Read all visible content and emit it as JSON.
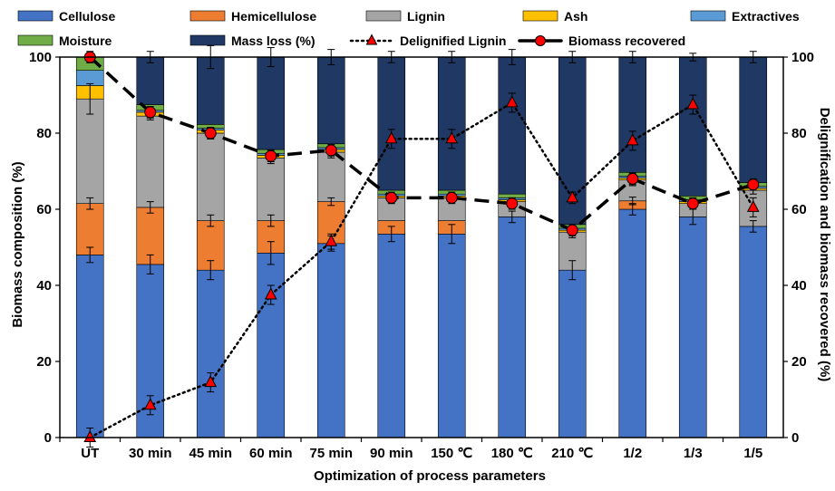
{
  "chart_data": {
    "type": "bar",
    "subtype": "stacked-bar-with-lines",
    "categories": [
      "UT",
      "30 min",
      "45 min",
      "60 min",
      "75 min",
      "90 min",
      "150 ℃",
      "180 ℃",
      "210 ℃",
      "1/2",
      "1/3",
      "1/5"
    ],
    "xlabel": "Optimization of process parameters",
    "ylabel": "Biomass composition (%)",
    "y2label": "Delignification and biomass recovered (%)",
    "ylim": [
      0,
      100
    ],
    "y2lim": [
      0,
      100
    ],
    "yticks": [
      0,
      20,
      40,
      60,
      80,
      100
    ],
    "y2ticks": [
      0,
      20,
      40,
      60,
      80,
      100
    ],
    "grid": false,
    "legend_position": "top",
    "stacked_series": [
      {
        "name": "Cellulose",
        "color": "#4472C4",
        "values": [
          48,
          45.5,
          44,
          48.5,
          51,
          53.5,
          53.5,
          58,
          44,
          60,
          58,
          55.5
        ],
        "errors": [
          2,
          2.5,
          2.5,
          3,
          2,
          2,
          2.5,
          1.5,
          2.5,
          1.5,
          2,
          1.5
        ]
      },
      {
        "name": "Hemicellulose",
        "color": "#ED7D31",
        "values": [
          13.5,
          15,
          13,
          8.5,
          11,
          3.5,
          3.5,
          0,
          0,
          2.2,
          0,
          0
        ],
        "errors": [
          1.5,
          1.5,
          1.5,
          1.5,
          1,
          0,
          0,
          0,
          0,
          1,
          0,
          0
        ]
      },
      {
        "name": "Lignin",
        "color": "#A5A5A5",
        "values": [
          27.5,
          24,
          23,
          16.5,
          13,
          6,
          6,
          4,
          10,
          5.5,
          3.5,
          9.5
        ],
        "errors": [
          4,
          1,
          1.5,
          1.5,
          1.5,
          1,
          1,
          1,
          1.5,
          1.5,
          1.5,
          1
        ]
      },
      {
        "name": "Ash",
        "color": "#FFC000",
        "values": [
          3.5,
          1,
          0.8,
          0.7,
          0.7,
          0.5,
          0.5,
          0.5,
          0.5,
          0.5,
          0.5,
          0.5
        ],
        "errors": [
          0,
          0,
          0,
          0,
          0,
          0,
          0,
          0,
          0,
          0,
          0,
          0
        ]
      },
      {
        "name": "Extractives",
        "color": "#5B9BD5",
        "values": [
          4,
          0.5,
          0.5,
          0.5,
          0.5,
          0.5,
          0.5,
          0.5,
          0.5,
          0.5,
          0.5,
          0.5
        ],
        "errors": [
          0,
          0,
          0,
          0,
          0,
          0,
          0,
          0,
          0,
          0,
          0,
          0
        ]
      },
      {
        "name": "Moisture",
        "color": "#70AD47",
        "values": [
          3.5,
          1.5,
          1,
          1,
          1,
          1,
          1,
          1,
          1,
          1,
          1,
          1
        ],
        "errors": [
          0,
          0,
          0,
          0,
          0,
          0,
          0,
          0,
          0,
          0,
          0,
          0
        ]
      },
      {
        "name": "Mass loss (%)",
        "color": "#203864",
        "values": [
          0,
          12.5,
          17.7,
          24.3,
          22.8,
          35,
          35,
          36,
          44,
          30.3,
          36.5,
          33
        ],
        "errors": [
          0,
          1.5,
          3,
          2.5,
          2,
          1.5,
          1.5,
          2,
          1.5,
          1.5,
          1,
          1.5
        ]
      }
    ],
    "line_series": [
      {
        "name": "Delignified Lignin",
        "style": "dotted",
        "marker": "triangle",
        "color": "#FF0000",
        "axis": "right",
        "values": [
          0,
          8.5,
          14.5,
          37.5,
          51.5,
          78.5,
          78.5,
          88,
          63,
          78,
          87.5,
          60.5
        ],
        "errors": [
          2.5,
          2.5,
          2.5,
          2.5,
          2,
          2.5,
          2.5,
          2.5,
          1.5,
          2.5,
          2.5,
          2.5
        ]
      },
      {
        "name": "Biomass recovered",
        "style": "dashed",
        "marker": "circle",
        "color": "#FF0000",
        "axis": "right",
        "values": [
          100,
          85.5,
          80,
          74,
          75.5,
          63,
          63,
          61.5,
          54.5,
          68,
          61.5,
          66.5
        ],
        "errors": [
          1.5,
          1.5,
          1.5,
          1.5,
          1.5,
          1.5,
          1.5,
          1.5,
          1.5,
          1.5,
          1.5,
          1.5
        ]
      }
    ]
  }
}
